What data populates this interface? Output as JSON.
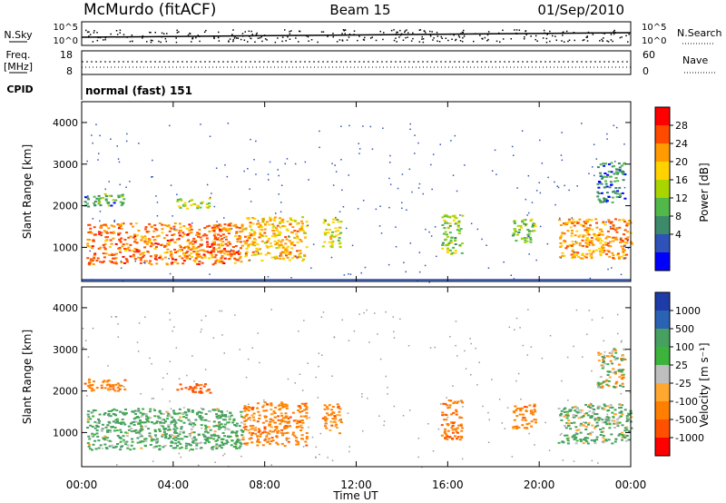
{
  "header": {
    "station": "McMurdo (fitACF)",
    "beam": "Beam 15",
    "date": "01/Sep/2010"
  },
  "noise_panel": {
    "left_label": "N.Sky",
    "right_label": "N.Search",
    "left_ticks": [
      "10^5",
      "10^0"
    ],
    "right_ticks": [
      "10^5",
      "10^0"
    ]
  },
  "freq_panel": {
    "left_label_1": "Freq.",
    "left_label_2": "[MHz]",
    "right_label": "Nave",
    "left_ticks": [
      "18",
      "8"
    ],
    "right_ticks": [
      "60",
      "0"
    ]
  },
  "cpid": {
    "label": "CPID",
    "mode": "normal (fast) 151"
  },
  "time_axis": {
    "label": "Time UT",
    "ticks": [
      "00:00",
      "04:00",
      "08:00",
      "12:00",
      "16:00",
      "20:00",
      "00:00"
    ]
  },
  "power_panel": {
    "ylabel": "Slant Range [km]",
    "yticks": [
      "4000",
      "3000",
      "2000",
      "1000"
    ],
    "colorbar_label": "Power [dB]",
    "colorbar_ticks": [
      "28",
      "24",
      "20",
      "16",
      "12",
      "8",
      "4"
    ]
  },
  "velocity_panel": {
    "ylabel": "Slant Range [km]",
    "yticks": [
      "4000",
      "3000",
      "2000",
      "1000"
    ],
    "colorbar_label": "Velocity [m s⁻¹]",
    "colorbar_ticks": [
      "1000",
      "500",
      "100",
      "25",
      "-25",
      "-100",
      "-500",
      "-1000"
    ]
  },
  "chart_data": [
    {
      "type": "heatmap",
      "title": "Power",
      "x_range_hours": [
        0,
        24
      ],
      "y_range_km": [
        180,
        4500
      ],
      "colorbar": {
        "ticks": [
          28,
          24,
          20,
          16,
          12,
          8,
          4
        ],
        "units": "dB",
        "colors": [
          "#ff0000",
          "#ff4a00",
          "#ff9a00",
          "#ffd200",
          "#a8d400",
          "#52b84a",
          "#3c8a6a",
          "#2e52b8",
          "#0000ff"
        ]
      },
      "echo_regions": [
        {
          "t0": 0.1,
          "t1": 1.9,
          "r0": 2000,
          "r1": 2300,
          "level": 8
        },
        {
          "t0": 4.1,
          "t1": 5.6,
          "r0": 1950,
          "r1": 2200,
          "level": 14
        },
        {
          "t0": 0.2,
          "t1": 7.0,
          "r0": 600,
          "r1": 1600,
          "level": 24
        },
        {
          "t0": 7.0,
          "t1": 9.8,
          "r0": 700,
          "r1": 1750,
          "level": 20
        },
        {
          "t0": 10.5,
          "t1": 11.3,
          "r0": 1000,
          "r1": 1700,
          "level": 16
        },
        {
          "t0": 15.7,
          "t1": 16.6,
          "r0": 850,
          "r1": 1800,
          "level": 12
        },
        {
          "t0": 18.8,
          "t1": 19.8,
          "r0": 1100,
          "r1": 1700,
          "level": 12
        },
        {
          "t0": 20.8,
          "t1": 24.0,
          "r0": 750,
          "r1": 1700,
          "level": 22
        },
        {
          "t0": 22.5,
          "t1": 23.7,
          "r0": 2100,
          "r1": 3050,
          "level": 6
        }
      ]
    },
    {
      "type": "heatmap",
      "title": "Velocity",
      "x_range_hours": [
        0,
        24
      ],
      "y_range_km": [
        180,
        4500
      ],
      "colorbar": {
        "ticks": [
          1000,
          500,
          100,
          25,
          -25,
          -100,
          -500,
          -1000
        ],
        "units": "m s-1",
        "colors": [
          "#1e3ca8",
          "#2a62b4",
          "#46a060",
          "#3cb43c",
          "#bebebe",
          "#ffa830",
          "#ff8000",
          "#ff5000",
          "#ff0000"
        ]
      },
      "echo_regions": [
        {
          "t0": 0.1,
          "t1": 1.9,
          "r0": 2000,
          "r1": 2300,
          "level": -300
        },
        {
          "t0": 4.1,
          "t1": 5.6,
          "r0": 1950,
          "r1": 2200,
          "level": -700
        },
        {
          "t0": 0.2,
          "t1": 7.0,
          "r0": 600,
          "r1": 1600,
          "level": 200
        },
        {
          "t0": 7.0,
          "t1": 9.8,
          "r0": 700,
          "r1": 1750,
          "level": -300
        },
        {
          "t0": 10.5,
          "t1": 11.3,
          "r0": 1000,
          "r1": 1700,
          "level": -300
        },
        {
          "t0": 15.7,
          "t1": 16.6,
          "r0": 850,
          "r1": 1800,
          "level": -400
        },
        {
          "t0": 18.8,
          "t1": 19.8,
          "r0": 1100,
          "r1": 1700,
          "level": -300
        },
        {
          "t0": 20.8,
          "t1": 24.0,
          "r0": 750,
          "r1": 1700,
          "level": 150
        },
        {
          "t0": 22.5,
          "t1": 23.7,
          "r0": 2100,
          "r1": 3050,
          "level": 0
        }
      ]
    }
  ]
}
